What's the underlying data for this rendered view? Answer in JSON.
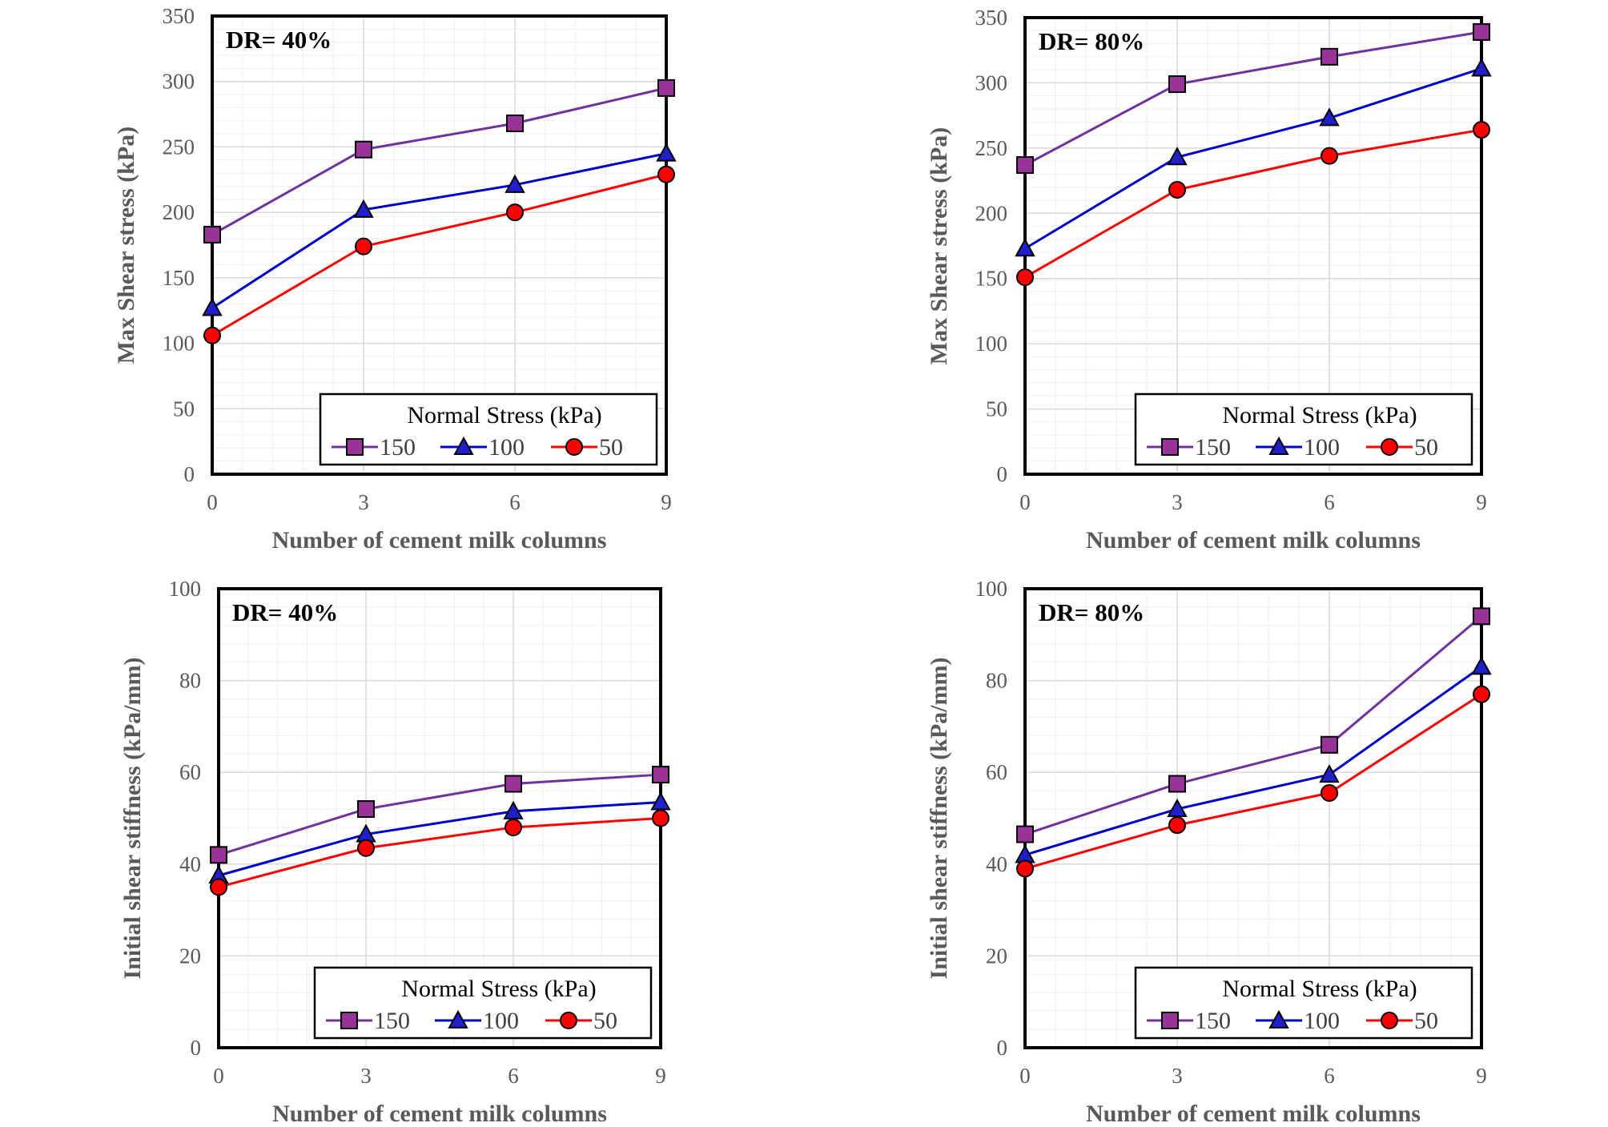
{
  "colors": {
    "series_150": "#7030a0",
    "series_100": "#0000cc",
    "series_50": "#ff0000",
    "marker_150": "#993399",
    "marker_100": "#1f1fcc",
    "marker_50": "#ff0000",
    "grid": "#d9d9d9",
    "tick_text": "#595959"
  },
  "chart_data": [
    {
      "type": "line",
      "panel_label": "DR= 40%",
      "xlabel": "Number of cement milk columns",
      "ylabel": "Max Shear stress (kPa)",
      "categories": [
        0,
        3,
        6,
        9
      ],
      "x_ticks": [
        "0",
        "3",
        "6",
        "9"
      ],
      "ylim": [
        0,
        350
      ],
      "y_ticks": [
        "0",
        "50",
        "100",
        "150",
        "200",
        "250",
        "300",
        "350"
      ],
      "grid": true,
      "legend": {
        "title": "Normal Stress (kPa)",
        "placement": "bottom-right"
      },
      "series": [
        {
          "name": "150",
          "marker": "square",
          "values": [
            183,
            248,
            268,
            295
          ]
        },
        {
          "name": "100",
          "marker": "triangle",
          "values": [
            127,
            202,
            221,
            245
          ]
        },
        {
          "name": "50",
          "marker": "circle",
          "values": [
            106,
            174,
            200,
            229
          ]
        }
      ]
    },
    {
      "type": "line",
      "panel_label": "DR= 80%",
      "xlabel": "Number of cement milk columns",
      "ylabel": "Max Shear stress (kPa)",
      "categories": [
        0,
        3,
        6,
        9
      ],
      "x_ticks": [
        "0",
        "3",
        "6",
        "9"
      ],
      "ylim": [
        0,
        350
      ],
      "y_ticks": [
        "0",
        "50",
        "100",
        "150",
        "200",
        "250",
        "300",
        "350"
      ],
      "grid": true,
      "legend": {
        "title": "Normal Stress (kPa)",
        "placement": "bottom-right"
      },
      "series": [
        {
          "name": "150",
          "marker": "square",
          "values": [
            237,
            299,
            320,
            339
          ]
        },
        {
          "name": "100",
          "marker": "triangle",
          "values": [
            173,
            243,
            273,
            311
          ]
        },
        {
          "name": "50",
          "marker": "circle",
          "values": [
            151,
            218,
            244,
            264
          ]
        }
      ]
    },
    {
      "type": "line",
      "panel_label": "DR= 40%",
      "xlabel": "Number of cement milk columns",
      "ylabel": "Initial shear stiffness (kPa/mm)",
      "categories": [
        0,
        3,
        6,
        9
      ],
      "x_ticks": [
        "0",
        "3",
        "6",
        "9"
      ],
      "ylim": [
        0,
        100
      ],
      "y_ticks": [
        "0",
        "20",
        "40",
        "60",
        "80",
        "100"
      ],
      "grid": true,
      "legend": {
        "title": "Normal Stress (kPa)",
        "placement": "bottom-right"
      },
      "series": [
        {
          "name": "150",
          "marker": "square",
          "values": [
            42,
            52,
            57.5,
            59.5
          ]
        },
        {
          "name": "100",
          "marker": "triangle",
          "values": [
            37.5,
            46.5,
            51.5,
            53.5
          ]
        },
        {
          "name": "50",
          "marker": "circle",
          "values": [
            35,
            43.5,
            48,
            50
          ]
        }
      ]
    },
    {
      "type": "line",
      "panel_label": "DR= 80%",
      "xlabel": "Number of cement milk columns",
      "ylabel": "Initial shear stiffness (kPa/mm)",
      "categories": [
        0,
        3,
        6,
        9
      ],
      "x_ticks": [
        "0",
        "3",
        "6",
        "9"
      ],
      "ylim": [
        0,
        100
      ],
      "y_ticks": [
        "0",
        "20",
        "40",
        "60",
        "80",
        "100"
      ],
      "grid": true,
      "legend": {
        "title": "Normal Stress (kPa)",
        "placement": "bottom-right"
      },
      "series": [
        {
          "name": "150",
          "marker": "square",
          "values": [
            46.5,
            57.5,
            66,
            94
          ]
        },
        {
          "name": "100",
          "marker": "triangle",
          "values": [
            42,
            52,
            59.5,
            83
          ]
        },
        {
          "name": "50",
          "marker": "circle",
          "values": [
            39,
            48.5,
            55.5,
            77
          ]
        }
      ]
    }
  ]
}
